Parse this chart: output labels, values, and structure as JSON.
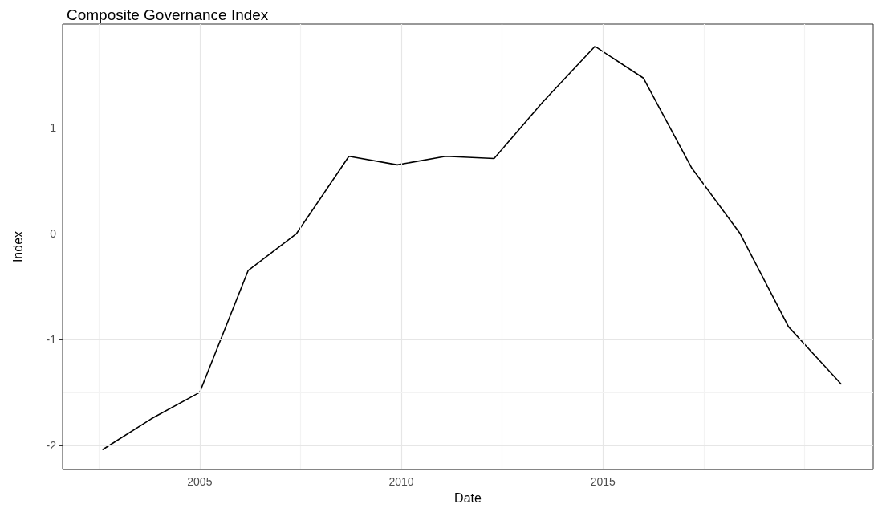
{
  "chart_data": {
    "type": "line",
    "title": "Composite Governance Index",
    "xlabel": "Date",
    "ylabel": "Index",
    "x": [
      2002.6,
      2003.8,
      2005.0,
      2006.2,
      2007.4,
      2008.7,
      2009.9,
      2011.1,
      2012.3,
      2013.5,
      2014.8,
      2016.0,
      2017.2,
      2018.4,
      2019.6,
      2020.9
    ],
    "series": [
      {
        "color": "#000000",
        "values": [
          -2.04,
          -1.75,
          -1.5,
          -0.35,
          0.0,
          0.73,
          0.65,
          0.73,
          0.71,
          1.24,
          1.77,
          1.47,
          0.62,
          0.0,
          -0.88,
          -1.42
        ]
      }
    ],
    "xlim": [
      2001.6,
      2021.7
    ],
    "xticks": [
      {
        "value": 2002.5,
        "label": null
      },
      2005,
      {
        "value": 2007.5,
        "label": null
      },
      2010,
      {
        "value": 2012.5,
        "label": null
      },
      2015,
      {
        "value": 2017.5,
        "label": null
      },
      {
        "value": 2020,
        "label": null
      }
    ],
    "ylim": [
      -2.23,
      1.98
    ],
    "yticks": [
      -2,
      {
        "value": -1.5,
        "label": null
      },
      -1,
      {
        "value": -0.5,
        "label": null
      },
      0,
      {
        "value": 0.5,
        "label": null
      },
      1,
      {
        "value": 1.5,
        "label": null
      }
    ],
    "grid": true,
    "marker": "none",
    "line_style": "solid"
  }
}
